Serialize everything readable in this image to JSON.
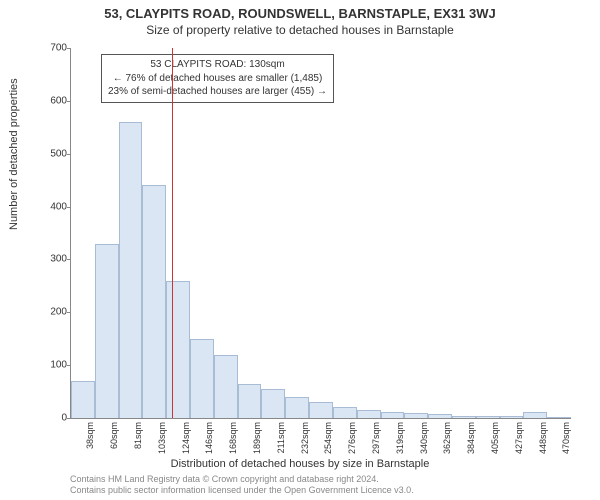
{
  "title": "53, CLAYPITS ROAD, ROUNDSWELL, BARNSTAPLE, EX31 3WJ",
  "subtitle": "Size of property relative to detached houses in Barnstaple",
  "ylabel": "Number of detached properties",
  "xlabel": "Distribution of detached houses by size in Barnstaple",
  "footer_line1": "Contains HM Land Registry data © Crown copyright and database right 2024.",
  "footer_line2": "Contains public sector information licensed under the Open Government Licence v3.0.",
  "annotation": {
    "line1": "53 CLAYPITS ROAD: 130sqm",
    "line2": "← 76% of detached houses are smaller (1,485)",
    "line3": "23% of semi-detached houses are larger (455) →"
  },
  "chart": {
    "type": "histogram",
    "ylim": [
      0,
      700
    ],
    "ytick_step": 100,
    "bar_fill": "#dbe6f4",
    "bar_stroke": "#a8bdd5",
    "marker_color": "#cc3333",
    "marker_x_value": 130,
    "background_color": "#ffffff",
    "x_start": 38,
    "x_bin_width": 21.6,
    "categories": [
      "38sqm",
      "60sqm",
      "81sqm",
      "103sqm",
      "124sqm",
      "146sqm",
      "168sqm",
      "189sqm",
      "211sqm",
      "232sqm",
      "254sqm",
      "276sqm",
      "297sqm",
      "319sqm",
      "340sqm",
      "362sqm",
      "384sqm",
      "405sqm",
      "427sqm",
      "448sqm",
      "470sqm"
    ],
    "values": [
      70,
      330,
      560,
      440,
      260,
      150,
      120,
      65,
      55,
      40,
      30,
      20,
      15,
      12,
      10,
      8,
      4,
      4,
      3,
      12,
      2
    ],
    "axis_fontsize": 10,
    "label_fontsize": 11,
    "title_fontsize": 13
  }
}
